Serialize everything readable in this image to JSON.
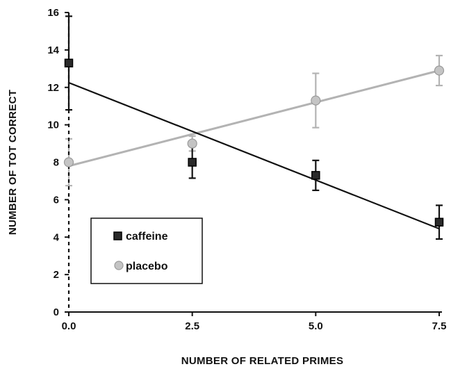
{
  "chart_data": {
    "type": "scatter",
    "title": "",
    "xlabel": "NUMBER OF RELATED PRIMES",
    "ylabel": "NUMBER OF TOT CORRECT",
    "xlim": [
      0,
      7.5
    ],
    "ylim": [
      0,
      16
    ],
    "x_ticks": [
      "0.0",
      "2.5",
      "5.0",
      "7.5"
    ],
    "y_ticks": [
      "0",
      "2",
      "4",
      "6",
      "8",
      "10",
      "12",
      "14",
      "16"
    ],
    "grid": false,
    "legend_position": "bottom-left",
    "series": [
      {
        "name": "caffeine",
        "color": "#111111",
        "marker": "square",
        "x": [
          0.0,
          2.5,
          5.0,
          7.5
        ],
        "y": [
          13.3,
          8.0,
          7.3,
          4.8
        ],
        "error": [
          2.5,
          0.85,
          0.8,
          0.9
        ],
        "fit_line": [
          [
            0.0,
            12.25
          ],
          [
            7.5,
            4.45
          ]
        ]
      },
      {
        "name": "placebo",
        "color": "#b3b3b3",
        "marker": "circle",
        "x": [
          0.0,
          2.5,
          5.0,
          7.5
        ],
        "y": [
          8.0,
          9.0,
          11.3,
          12.9
        ],
        "error": [
          1.25,
          0.4,
          1.45,
          0.8
        ],
        "fit_line": [
          [
            0.0,
            7.8
          ],
          [
            7.5,
            12.9
          ]
        ]
      }
    ]
  }
}
